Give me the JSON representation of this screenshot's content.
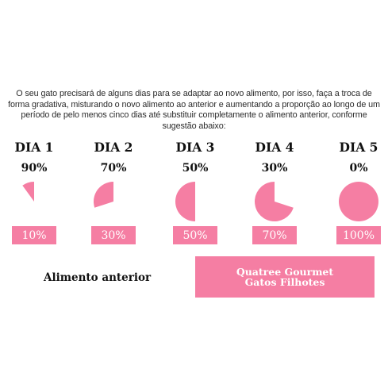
{
  "intro": "O seu gato precisará de alguns dias para se adaptar ao novo alimento, por isso, faça a troca de forma gradativa, misturando o novo alimento ao anterior e aumentando a proporção ao longo de um período de pelo menos cinco dias até substituir completamente o alimento anterior, conforme sugestão abaixo:",
  "accent_color": "#f57ea3",
  "days": [
    {
      "label": "DIA 1",
      "old": "90%",
      "new": "10%",
      "new_fraction": 0.1
    },
    {
      "label": "DIA 2",
      "old": "70%",
      "new": "30%",
      "new_fraction": 0.3
    },
    {
      "label": "DIA 3",
      "old": "50%",
      "new": "50%",
      "new_fraction": 0.5
    },
    {
      "label": "DIA 4",
      "old": "30%",
      "new": "70%",
      "new_fraction": 0.7
    },
    {
      "label": "DIA 5",
      "old": "0%",
      "new": "100%",
      "new_fraction": 1.0
    }
  ],
  "legend": {
    "old_food": "Alimento anterior",
    "new_food_line1": "Quatree Gourmet",
    "new_food_line2": "Gatos Filhotes"
  }
}
